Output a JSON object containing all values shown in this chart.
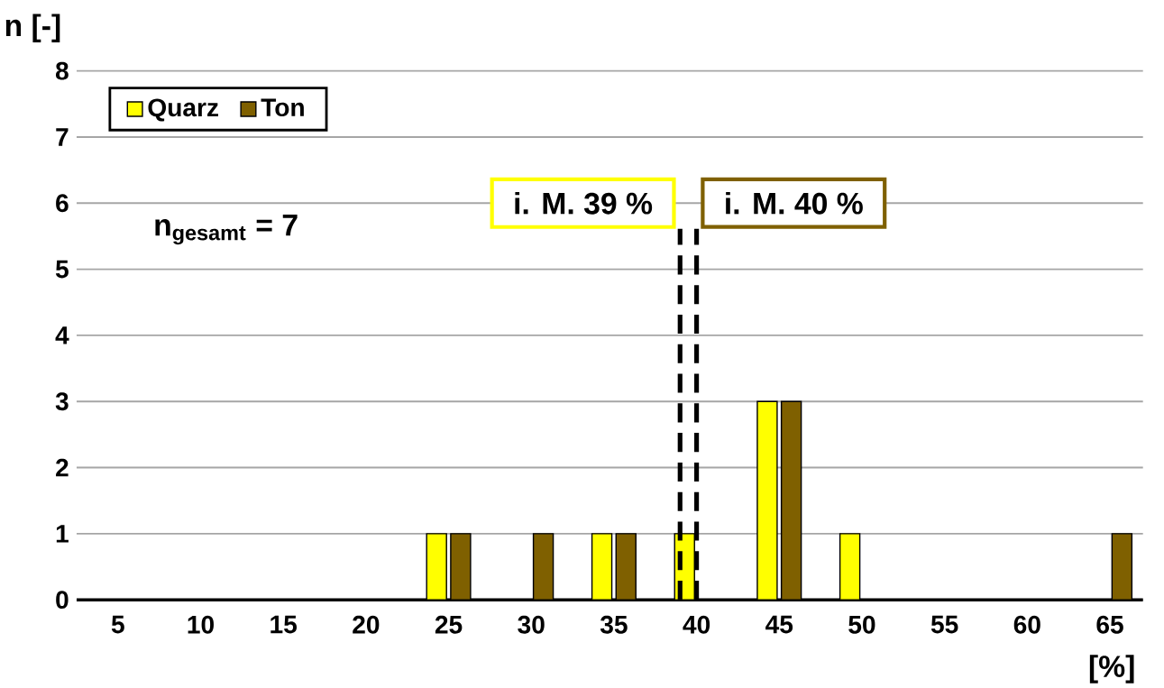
{
  "chart_data": {
    "type": "bar",
    "xlabel": "[%]",
    "ylabel": "n [-]",
    "x": [
      5,
      10,
      15,
      20,
      25,
      30,
      35,
      40,
      45,
      50,
      55,
      60,
      65
    ],
    "series": [
      {
        "name": "Quarz",
        "color": "#ffff00",
        "values": [
          0,
          0,
          0,
          0,
          1,
          0,
          1,
          1,
          3,
          1,
          0,
          0,
          0
        ]
      },
      {
        "name": "Ton",
        "color": "#7f6000",
        "values": [
          0,
          0,
          0,
          0,
          1,
          1,
          1,
          0,
          3,
          0,
          0,
          0,
          1
        ]
      }
    ],
    "xlim": [
      2.5,
      67
    ],
    "xticks": [
      5,
      10,
      15,
      20,
      25,
      30,
      35,
      40,
      45,
      50,
      55,
      60,
      65
    ],
    "ylim": [
      0,
      8
    ],
    "yticks": [
      0,
      1,
      2,
      3,
      4,
      5,
      6,
      7,
      8
    ],
    "grid": "y",
    "legend": "top left",
    "ref_lines": [
      {
        "axis": "x",
        "value": 39,
        "label": "i. M. 39 %",
        "color": "#000000",
        "line_style": "dashed"
      },
      {
        "axis": "x",
        "value": 40,
        "label": "i. M. 40 %",
        "color": "#000000",
        "line_style": "dashed"
      }
    ],
    "annotations": [
      "n$_{gesamt}$ = 7"
    ]
  }
}
